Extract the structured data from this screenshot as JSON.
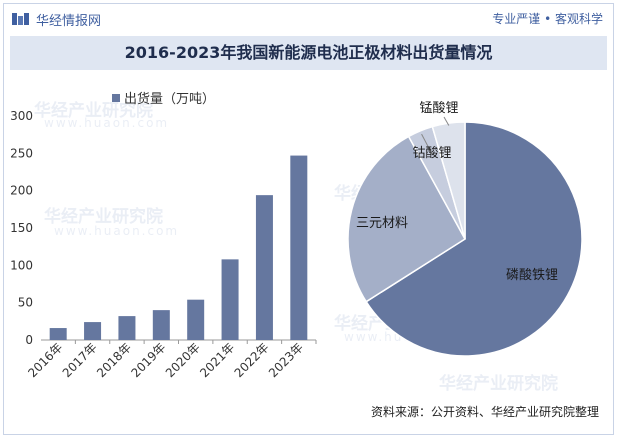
{
  "header": {
    "brand": "华经情报网",
    "slogan": "专业严谨 • 客观科学"
  },
  "title": "2016-2023年我国新能源电池正极材料出货量情况",
  "watermark": {
    "name": "华经产业研究院",
    "url": "www.huaon.com"
  },
  "source": "资料来源：公开资料、华经产业研究院整理",
  "colors": {
    "bar": "#65779f",
    "pie": [
      "#65779f",
      "#a4afc8",
      "#c6cdde",
      "#dde2ec"
    ]
  },
  "chart_data": [
    {
      "type": "bar",
      "legend": "出货量（万吨）",
      "categories": [
        "2016年",
        "2017年",
        "2018年",
        "2019年",
        "2020年",
        "2021年",
        "2022年",
        "2023年"
      ],
      "series": [
        {
          "name": "出货量（万吨）",
          "values": [
            16,
            24,
            32,
            40,
            54,
            108,
            194,
            247
          ]
        }
      ],
      "ylim": [
        0,
        300
      ],
      "yticks": [
        0,
        50,
        100,
        150,
        200,
        250,
        300
      ],
      "grid": false
    },
    {
      "type": "pie",
      "labels": [
        "磷酸铁锂",
        "三元材料",
        "钴酸锂",
        "锰酸锂"
      ],
      "values": [
        66,
        26,
        3.5,
        4.5
      ]
    }
  ]
}
